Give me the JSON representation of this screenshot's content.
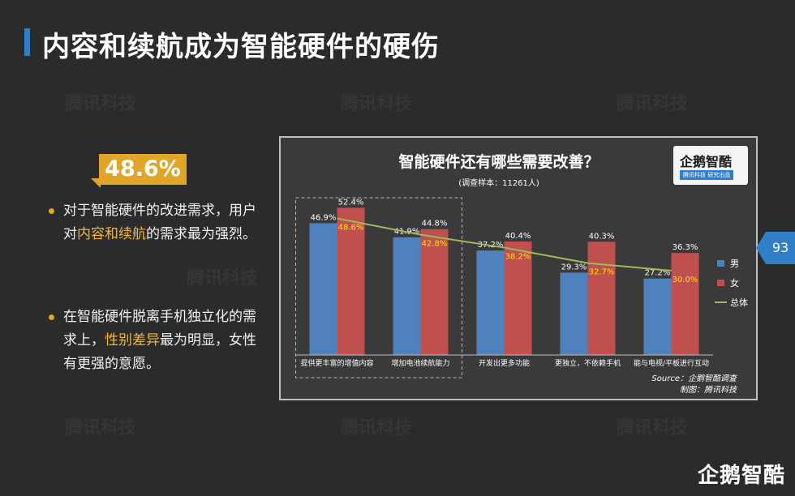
{
  "page": {
    "title": "内容和续航成为智能硬件的硬伤",
    "page_number": "93",
    "watermark": "腾讯科技",
    "footer_logo": "企鹅智酷"
  },
  "highlight": {
    "value": "48.6%"
  },
  "bullets": [
    {
      "parts": [
        "对于智能硬件的改进需求，用户对",
        "内容和续航",
        "的需求最为强烈。"
      ]
    },
    {
      "parts": [
        "在智能硬件脱离手机独立化的需求上，",
        "性别差异",
        "最为明显，女性有更强的意愿。"
      ]
    }
  ],
  "logo_box": {
    "name": "企鹅智酷",
    "sub": "腾讯科技  研究出品"
  },
  "chart_data": {
    "type": "bar",
    "title": "智能硬件还有哪些需要改善？",
    "subtitle": "(调查样本：11261人)",
    "categories": [
      "提供更丰富的增值内容",
      "增加电池续航能力",
      "开发出更多功能",
      "更独立，不依赖手机",
      "能与电视/平板进行互动"
    ],
    "series": [
      {
        "name": "男",
        "type": "bar",
        "color": "#4f81bd",
        "values": [
          46.9,
          41.9,
          37.2,
          29.3,
          27.2
        ]
      },
      {
        "name": "女",
        "type": "bar",
        "color": "#c0504d",
        "values": [
          52.4,
          44.8,
          40.4,
          40.3,
          36.3
        ]
      },
      {
        "name": "总体",
        "type": "line",
        "color": "#9bbb59",
        "values": [
          48.6,
          42.8,
          38.2,
          32.7,
          30.0
        ]
      }
    ],
    "value_labels": {
      "男": [
        "46.9%",
        "41.9%",
        "37.2%",
        "29.3%",
        "27.2%"
      ],
      "女": [
        "52.4%",
        "44.8%",
        "40.4%",
        "40.3%",
        "36.3%"
      ],
      "总体": [
        "48.6%",
        "42.8%",
        "38.2%",
        "32.7%",
        "30.0%"
      ]
    },
    "ylim": [
      0,
      60
    ],
    "grid": false,
    "legend_position": "right",
    "source": "Source：企鹅智酷调查",
    "credit": "制图：腾讯科技",
    "highlighted_categories": [
      0,
      1
    ],
    "line_label_color": "#f2e600",
    "label_color": "#ffffff"
  }
}
